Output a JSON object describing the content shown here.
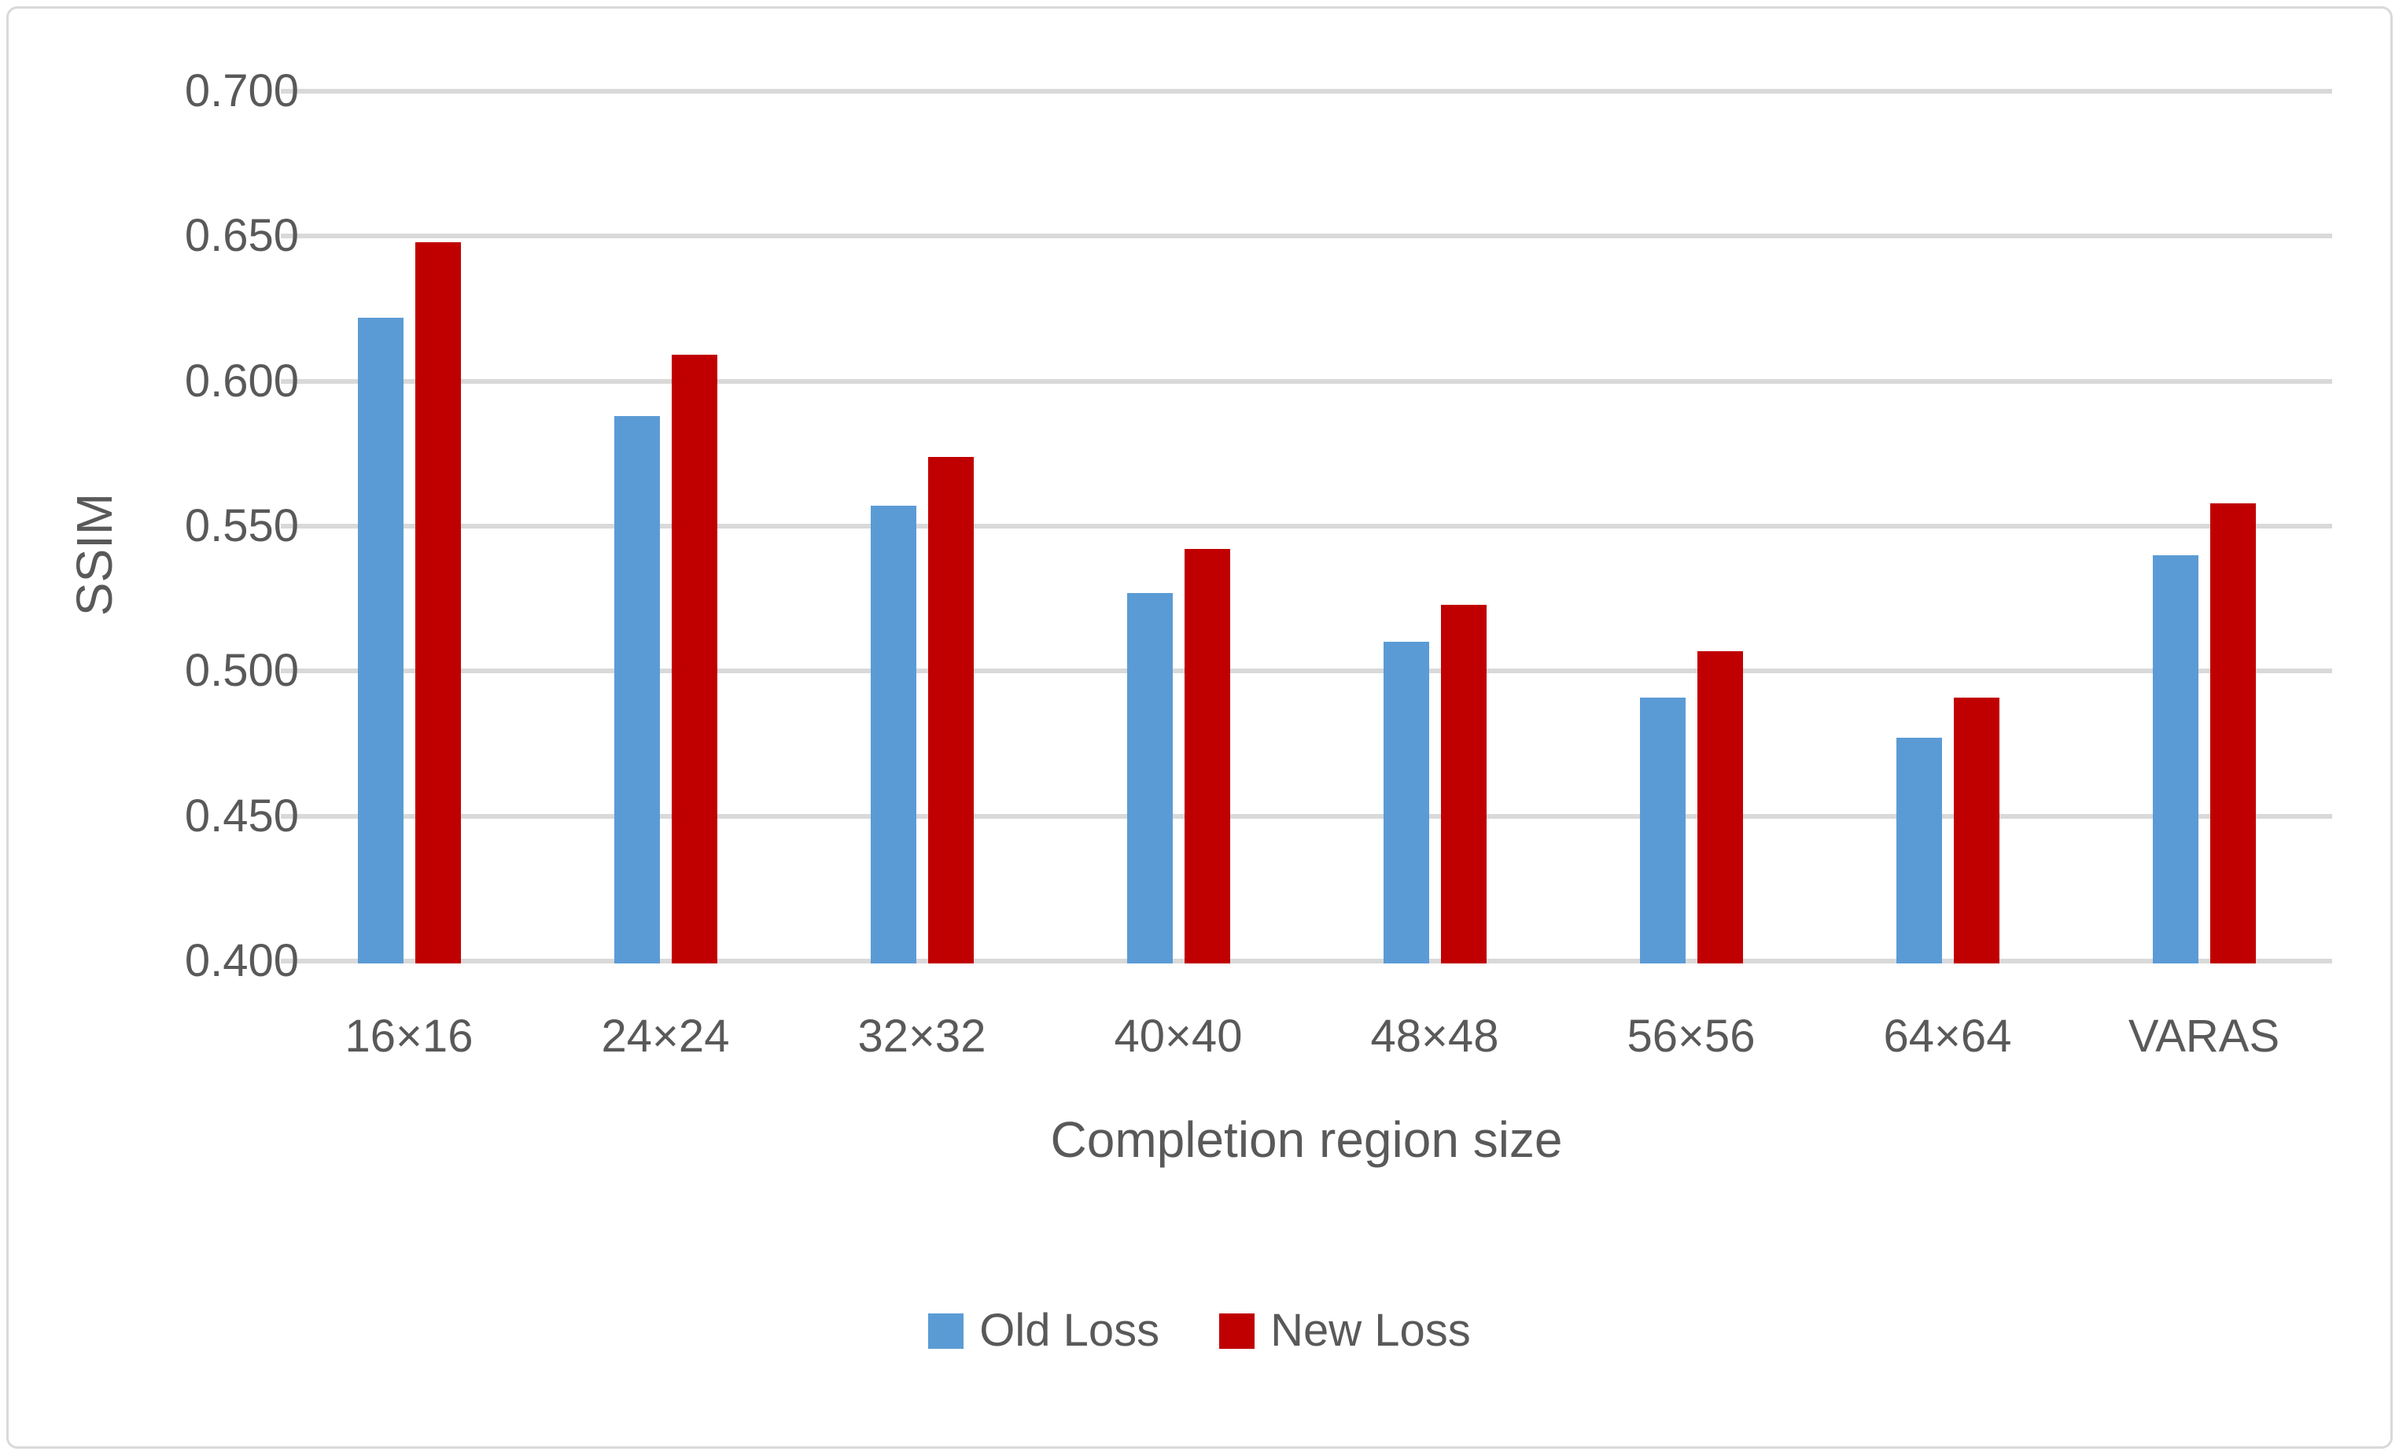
{
  "chart_data": {
    "type": "bar",
    "categories": [
      "16×16",
      "24×24",
      "32×32",
      "40×40",
      "48×48",
      "56×56",
      "64×64",
      "VARAS"
    ],
    "series": [
      {
        "name": "Old Loss",
        "color": "#5B9BD5",
        "values": [
          0.622,
          0.588,
          0.557,
          0.527,
          0.51,
          0.491,
          0.477,
          0.54
        ]
      },
      {
        "name": "New Loss",
        "color": "#C00000",
        "values": [
          0.648,
          0.609,
          0.574,
          0.542,
          0.523,
          0.507,
          0.491,
          0.558
        ]
      }
    ],
    "xlabel": "Completion region size",
    "ylabel": "SSIM",
    "ylim": [
      0.4,
      0.7
    ],
    "ytick_step": 0.05,
    "ytick_labels": [
      "0.700",
      "0.650",
      "0.600",
      "0.550",
      "0.500",
      "0.450",
      "0.400"
    ],
    "grid": true,
    "legend_position": "bottom",
    "colors": {
      "gridline": "#D9D9D9",
      "frame_border": "#D9D9D9",
      "text": "#595959",
      "background": "#FFFFFF"
    }
  }
}
